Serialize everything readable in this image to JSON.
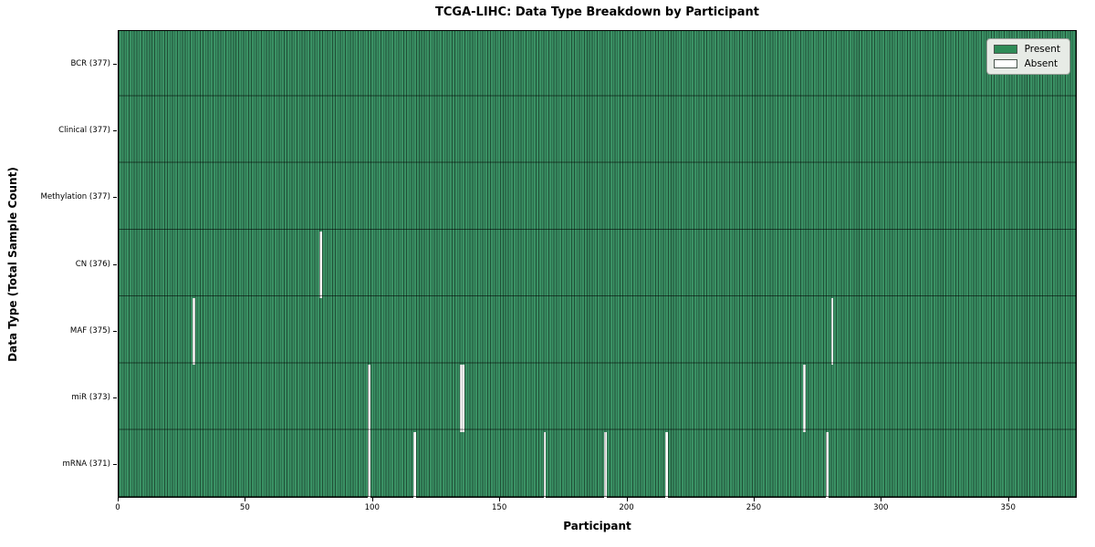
{
  "title": "TCGA-LIHC: Data Type Breakdown by Participant",
  "chart_data": {
    "type": "heatmap",
    "title": "TCGA-LIHC: Data Type Breakdown by Participant",
    "xlabel": "Participant",
    "ylabel": "Data Type (Total Sample Count)",
    "x_range": [
      0,
      377
    ],
    "x_ticks": [
      0,
      50,
      100,
      150,
      200,
      250,
      300,
      350
    ],
    "grid": false,
    "legend_position": "upper right",
    "legend": [
      {
        "label": "Present",
        "color": "#2e8b57"
      },
      {
        "label": "Absent",
        "color": "#ffffff"
      }
    ],
    "colors": {
      "present_fill": "#3a9164",
      "cell_edge": "rgba(0,0,0,0.45)",
      "absent_fill": "#ffffff"
    },
    "rows": [
      {
        "key": "bcr",
        "label": "BCR (377)",
        "total_samples": 377,
        "absent_participants": []
      },
      {
        "key": "clinical",
        "label": "Clinical (377)",
        "total_samples": 377,
        "absent_participants": []
      },
      {
        "key": "methylation",
        "label": "Methylation (377)",
        "total_samples": 377,
        "absent_participants": []
      },
      {
        "key": "cn",
        "label": "CN (376)",
        "total_samples": 376,
        "absent_participants": [
          79
        ]
      },
      {
        "key": "maf",
        "label": "MAF (375)",
        "total_samples": 375,
        "absent_participants": [
          29,
          280
        ]
      },
      {
        "key": "mir",
        "label": "miR (373)",
        "total_samples": 373,
        "absent_participants": [
          98,
          134,
          135,
          269
        ]
      },
      {
        "key": "mrna",
        "label": "mRNA (371)",
        "total_samples": 371,
        "absent_participants": [
          98,
          116,
          167,
          191,
          215,
          278
        ]
      }
    ]
  }
}
